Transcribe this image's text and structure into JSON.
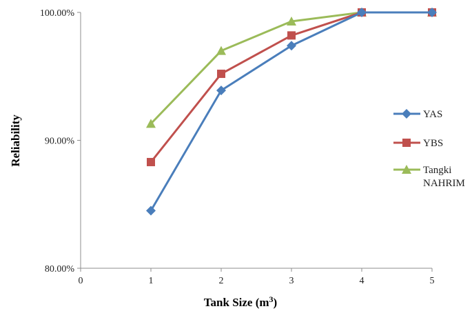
{
  "chart_data": {
    "type": "line",
    "title": "",
    "xlabel": "Tank Size (m",
    "xlabel_sup": "3",
    "xlabel_end": ")",
    "ylabel": "Reliability",
    "xlim": [
      0,
      5
    ],
    "ylim": [
      80,
      100
    ],
    "x_ticks": [
      "0",
      "1",
      "2",
      "3",
      "4",
      "5"
    ],
    "y_ticks": [
      "80.00%",
      "90.00%",
      "100.00%"
    ],
    "y_tick_values": [
      80,
      90,
      100
    ],
    "grid": false,
    "legend_position": "right",
    "series": [
      {
        "name": "YAS",
        "color": "#4a7ebb",
        "marker": "diamond",
        "x": [
          1,
          2,
          3,
          4,
          5
        ],
        "y": [
          84.5,
          93.9,
          97.4,
          100.0,
          100.0
        ]
      },
      {
        "name": "YBS",
        "color": "#c0504d",
        "marker": "square",
        "x": [
          1,
          2,
          3,
          4,
          5
        ],
        "y": [
          88.3,
          95.2,
          98.2,
          100.0,
          100.0
        ]
      },
      {
        "name": "Tangki NAHRIM",
        "name_lines": [
          "Tangki",
          "NAHRIM"
        ],
        "color": "#9bbb59",
        "marker": "triangle",
        "x": [
          1,
          2,
          3,
          4,
          5
        ],
        "y": [
          91.3,
          97.0,
          99.3,
          100.0,
          100.0
        ]
      }
    ]
  }
}
